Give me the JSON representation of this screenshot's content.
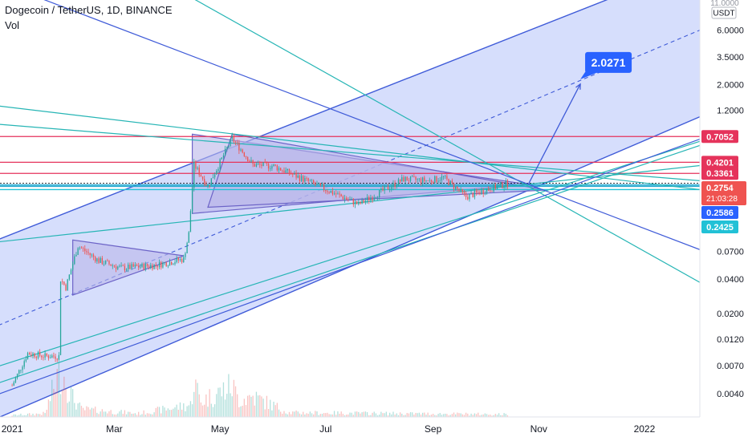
{
  "header": {
    "symbol": "Dogecoin / TetherUS, 1D, BINANCE",
    "volume_label": "Vol"
  },
  "price_scale": {
    "currency": "USDT",
    "top_partial_label": "11.0000"
  },
  "colors": {
    "background": "#ffffff",
    "channel_fill": "#cfd8fb",
    "channel_line": "#3f5bd8",
    "triangle_fill": "#b9b6ea",
    "triangle_line": "#6c63c7",
    "teal_line": "#26b5b5",
    "red_line": "#e5335b",
    "cyan_band": "#24a9cf",
    "candle_up": "#26a69a",
    "candle_down": "#ef5350",
    "target_box": "#2962ff",
    "label_cyan": "#22c1d6"
  },
  "chart_data": {
    "type": "candlestick",
    "title": "Dogecoin / TetherUS, 1D, BINANCE",
    "y_scale": "log",
    "y_range": [
      0.0025,
      11.0
    ],
    "y_ticks": [
      "6.0000",
      "3.5000",
      "2.0000",
      "1.2000",
      "0.0700",
      "0.0400",
      "0.0200",
      "0.0120",
      "0.0070",
      "0.0040"
    ],
    "x_ticks": [
      "2021",
      "Mar",
      "May",
      "Jul",
      "Sep",
      "Nov",
      "2022"
    ],
    "x_tick_dates": [
      "2021-01-01",
      "2021-03-01",
      "2021-05-01",
      "2021-07-01",
      "2021-09-01",
      "2021-11-01",
      "2022-01-01"
    ],
    "x_range": [
      "2020-12-25",
      "2022-02-02"
    ],
    "grid": false,
    "price_anchors": [
      {
        "date": "2021-01-01",
        "close": 0.0047
      },
      {
        "date": "2021-01-10",
        "close": 0.009
      },
      {
        "date": "2021-01-20",
        "close": 0.0085
      },
      {
        "date": "2021-01-28",
        "close": 0.0085
      },
      {
        "date": "2021-01-29",
        "close": 0.04
      },
      {
        "date": "2021-02-01",
        "close": 0.034
      },
      {
        "date": "2021-02-08",
        "close": 0.078
      },
      {
        "date": "2021-02-20",
        "close": 0.058
      },
      {
        "date": "2021-03-05",
        "close": 0.05
      },
      {
        "date": "2021-03-25",
        "close": 0.053
      },
      {
        "date": "2021-04-10",
        "close": 0.06
      },
      {
        "date": "2021-04-13",
        "close": 0.1
      },
      {
        "date": "2021-04-16",
        "close": 0.4
      },
      {
        "date": "2021-04-24",
        "close": 0.26
      },
      {
        "date": "2021-05-08",
        "close": 0.68
      },
      {
        "date": "2021-05-20",
        "close": 0.4
      },
      {
        "date": "2021-06-01",
        "close": 0.39
      },
      {
        "date": "2021-06-20",
        "close": 0.29
      },
      {
        "date": "2021-07-20",
        "close": 0.18
      },
      {
        "date": "2021-08-15",
        "close": 0.3
      },
      {
        "date": "2021-08-30",
        "close": 0.29
      },
      {
        "date": "2021-09-07",
        "close": 0.31
      },
      {
        "date": "2021-09-20",
        "close": 0.21
      },
      {
        "date": "2021-10-05",
        "close": 0.25
      },
      {
        "date": "2021-10-14",
        "close": 0.2754
      }
    ],
    "volume_range": [
      0,
      60
    ],
    "volume_anchors": [
      {
        "date": "2021-01-01",
        "volume": 2
      },
      {
        "date": "2021-01-20",
        "volume": 4
      },
      {
        "date": "2021-01-29",
        "volume": 58
      },
      {
        "date": "2021-02-05",
        "volume": 22
      },
      {
        "date": "2021-02-10",
        "volume": 9
      },
      {
        "date": "2021-03-15",
        "volume": 4
      },
      {
        "date": "2021-04-14",
        "volume": 14
      },
      {
        "date": "2021-04-16",
        "volume": 42
      },
      {
        "date": "2021-04-20",
        "volume": 18
      },
      {
        "date": "2021-05-08",
        "volume": 36
      },
      {
        "date": "2021-05-12",
        "volume": 20
      },
      {
        "date": "2021-05-20",
        "volume": 24
      },
      {
        "date": "2021-06-10",
        "volume": 5
      },
      {
        "date": "2021-08-10",
        "volume": 4
      },
      {
        "date": "2021-10-14",
        "volume": 3
      }
    ],
    "horizontal_levels": [
      {
        "price": 0.7052,
        "label": "0.7052",
        "color": "#e5335b",
        "label_color": "#e5335b"
      },
      {
        "price": 0.4201,
        "label": "0.4201",
        "color": "#e5335b",
        "label_color": "#e5335b"
      },
      {
        "price": 0.3361,
        "label": "0.3361",
        "color": "#e5335b",
        "label_color": "#e5335b"
      },
      {
        "price": 0.2586,
        "label": "0.2586",
        "color": "#24a9cf",
        "label_color": "#2962ff"
      },
      {
        "price": 0.2425,
        "label": "0.2425",
        "color": "#22c1d6",
        "label_color": "#22c1d6"
      }
    ],
    "current_price": {
      "value": "0.2754",
      "countdown": "21:03:28",
      "color": "#ef5350"
    },
    "target": {
      "label": "2.0271",
      "price": 2.0271,
      "date": "2021-11-25"
    },
    "channel": {
      "lower": [
        {
          "date": "2020-12-25",
          "price": 0.0025
        },
        {
          "date": "2022-02-02",
          "price": 1.05
        }
      ],
      "upper": [
        {
          "date": "2020-12-25",
          "price": 0.09
        },
        {
          "date": "2021-12-10",
          "price": 11.0
        }
      ],
      "mid": [
        {
          "date": "2020-12-25",
          "price": 0.016
        },
        {
          "date": "2022-02-02",
          "price": 6.0
        }
      ]
    },
    "triangles": [
      {
        "points": [
          {
            "date": "2021-02-05",
            "price": 0.088
          },
          {
            "date": "2021-02-05",
            "price": 0.029
          },
          {
            "date": "2021-04-10",
            "price": 0.064
          }
        ]
      },
      {
        "points": [
          {
            "date": "2021-04-15",
            "price": 0.74
          },
          {
            "date": "2021-04-15",
            "price": 0.15
          },
          {
            "date": "2021-10-25",
            "price": 0.27
          }
        ]
      },
      {
        "points": [
          {
            "date": "2021-04-24",
            "price": 0.17
          },
          {
            "date": "2021-05-08",
            "price": 0.74
          },
          {
            "date": "2021-11-05",
            "price": 0.24
          }
        ]
      }
    ],
    "trend_lines": [
      {
        "color": "#26b5b5",
        "points": [
          {
            "date": "2021-04-17",
            "price": 11.0
          },
          {
            "date": "2022-02-02",
            "price": 0.0375
          }
        ]
      },
      {
        "color": "#26b5b5",
        "points": [
          {
            "date": "2020-12-25",
            "price": 1.3
          },
          {
            "date": "2022-02-02",
            "price": 0.2425
          }
        ]
      },
      {
        "color": "#26b5b5",
        "points": [
          {
            "date": "2020-12-25",
            "price": 0.9
          },
          {
            "date": "2022-02-02",
            "price": 0.29
          }
        ]
      },
      {
        "color": "#26b5b5",
        "points": [
          {
            "date": "2020-12-25",
            "price": 0.085
          },
          {
            "date": "2021-10-24",
            "price": 0.268
          }
        ]
      },
      {
        "color": "#26b5b5",
        "points": [
          {
            "date": "2020-12-25",
            "price": 0.007
          },
          {
            "date": "2022-02-02",
            "price": 0.64
          }
        ]
      },
      {
        "color": "#26b5b5",
        "points": [
          {
            "date": "2020-12-25",
            "price": 0.005
          },
          {
            "date": "2022-02-02",
            "price": 0.59
          }
        ]
      },
      {
        "color": "#3f5bd8",
        "points": [
          {
            "date": "2021-01-20",
            "price": 11.0
          },
          {
            "date": "2021-10-26",
            "price": 0.27
          }
        ]
      },
      {
        "color": "#3f5bd8",
        "points": [
          {
            "date": "2020-12-25",
            "price": 0.004
          },
          {
            "date": "2022-02-02",
            "price": 0.67
          }
        ]
      }
    ],
    "projection": [
      {
        "date": "2021-10-26",
        "price": 0.27
      },
      {
        "date": "2021-11-25",
        "price": 2.0271
      }
    ]
  }
}
